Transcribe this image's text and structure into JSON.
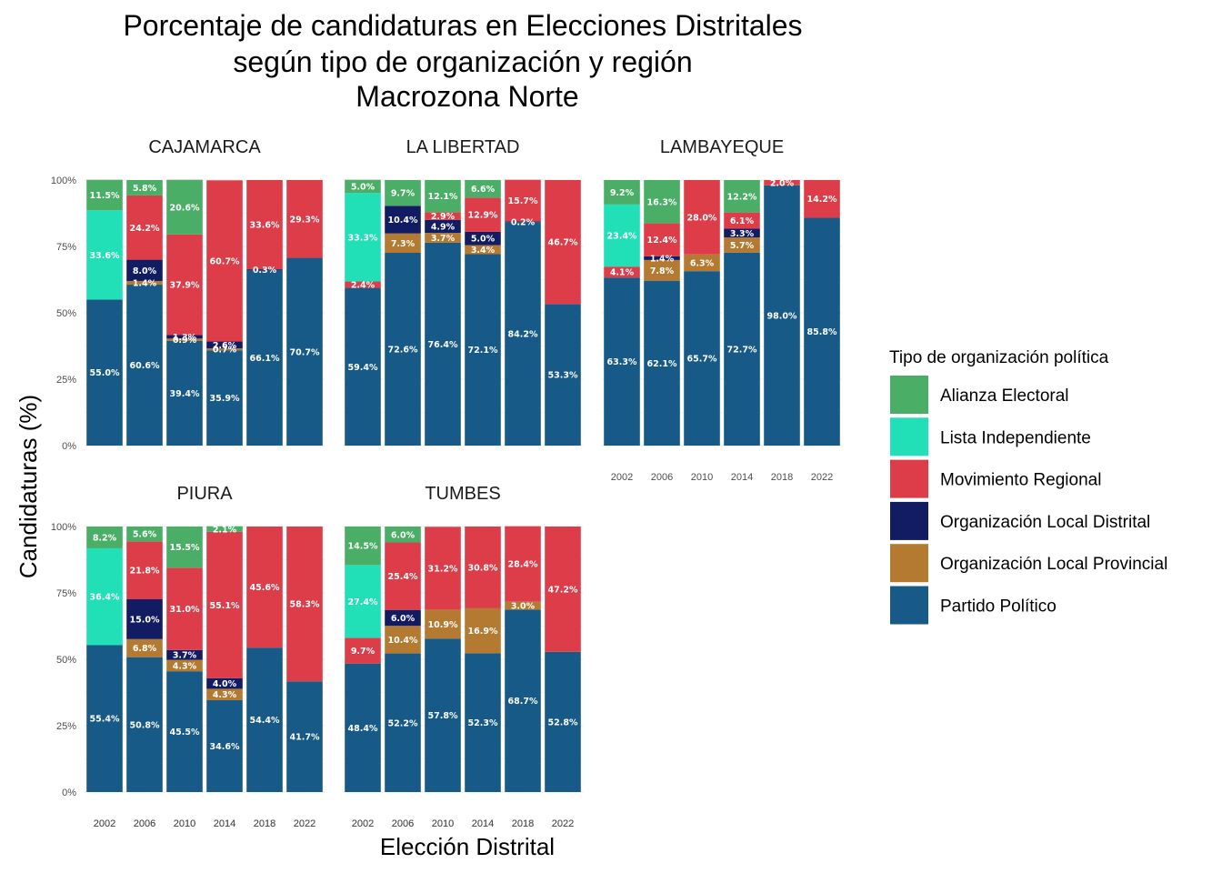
{
  "chart_data": {
    "type": "bar",
    "stacked": true,
    "faceted": true,
    "title": [
      "Porcentaje de candidaturas en Elecciones Distritales",
      "según tipo de organización y región",
      "Macrozona Norte"
    ],
    "xlabel": "Elección Distrital",
    "ylabel": "Candidaturas (%)",
    "ylim": [
      0,
      100
    ],
    "ytick_labels": [
      "0%",
      "25%",
      "50%",
      "75%",
      "100%"
    ],
    "categories": [
      "2002",
      "2006",
      "2010",
      "2014",
      "2018",
      "2022"
    ],
    "grid": true,
    "legend": {
      "title": "Tipo de organización política",
      "position": "right",
      "entries": [
        "Alianza Electoral",
        "Lista Independiente",
        "Movimiento Regional",
        "Organización Local Distrital",
        "Organización Local Provincial",
        "Partido Político"
      ]
    },
    "colors": {
      "Alianza Electoral": "#4BAE66",
      "Lista Independiente": "#21DFB7",
      "Movimiento Regional": "#DD3D49",
      "Organización Local Distrital": "#121C63",
      "Organización Local Provincial": "#B47A31",
      "Partido Político": "#175987"
    },
    "stack_order": [
      "Partido Político",
      "Organización Local Provincial",
      "Organización Local Distrital",
      "Movimiento Regional",
      "Lista Independiente",
      "Alianza Electoral"
    ],
    "facets": [
      {
        "name": "CAJAMARCA",
        "series": [
          {
            "name": "Partido Político",
            "values": [
              55.0,
              60.6,
              39.4,
              35.9,
              66.1,
              70.7
            ]
          },
          {
            "name": "Organización Local Provincial",
            "values": [
              0,
              1.4,
              0.9,
              0.7,
              0,
              0
            ]
          },
          {
            "name": "Organización Local Distrital",
            "values": [
              0,
              8.0,
              1.3,
              2.6,
              0.3,
              0
            ]
          },
          {
            "name": "Movimiento Regional",
            "values": [
              0,
              24.2,
              37.9,
              60.7,
              33.6,
              29.3
            ]
          },
          {
            "name": "Lista Independiente",
            "values": [
              33.6,
              0,
              0,
              0,
              0,
              0
            ]
          },
          {
            "name": "Alianza Electoral",
            "values": [
              11.5,
              5.8,
              20.6,
              0,
              0,
              0
            ]
          }
        ]
      },
      {
        "name": "LA LIBERTAD",
        "series": [
          {
            "name": "Partido Político",
            "values": [
              59.4,
              72.6,
              76.4,
              72.1,
              84.2,
              53.3
            ]
          },
          {
            "name": "Organización Local Provincial",
            "values": [
              0,
              7.3,
              3.7,
              3.4,
              0,
              0
            ]
          },
          {
            "name": "Organización Local Distrital",
            "values": [
              0,
              10.4,
              4.9,
              5.0,
              0.2,
              0
            ]
          },
          {
            "name": "Movimiento Regional",
            "values": [
              2.4,
              0,
              2.9,
              12.9,
              15.7,
              46.7
            ]
          },
          {
            "name": "Lista Independiente",
            "values": [
              33.3,
              0,
              0,
              0,
              0,
              0
            ]
          },
          {
            "name": "Alianza Electoral",
            "values": [
              5.0,
              9.7,
              12.1,
              6.6,
              0,
              0
            ]
          }
        ]
      },
      {
        "name": "LAMBAYEQUE",
        "series": [
          {
            "name": "Partido Político",
            "values": [
              63.3,
              62.1,
              65.7,
              72.7,
              98.0,
              85.8
            ]
          },
          {
            "name": "Organización Local Provincial",
            "values": [
              0,
              7.8,
              6.3,
              5.7,
              0,
              0
            ]
          },
          {
            "name": "Organización Local Distrital",
            "values": [
              0,
              1.4,
              0,
              3.3,
              0,
              0
            ]
          },
          {
            "name": "Movimiento Regional",
            "values": [
              4.1,
              12.4,
              28.0,
              6.1,
              2.0,
              14.2
            ]
          },
          {
            "name": "Lista Independiente",
            "values": [
              23.4,
              0,
              0,
              0,
              0,
              0
            ]
          },
          {
            "name": "Alianza Electoral",
            "values": [
              9.2,
              16.3,
              0,
              12.2,
              0,
              0
            ]
          }
        ]
      },
      {
        "name": "PIURA",
        "series": [
          {
            "name": "Partido Político",
            "values": [
              55.4,
              50.8,
              45.5,
              34.6,
              54.4,
              41.7
            ]
          },
          {
            "name": "Organización Local Provincial",
            "values": [
              0,
              6.8,
              4.3,
              4.3,
              0,
              0
            ]
          },
          {
            "name": "Organización Local Distrital",
            "values": [
              0,
              15.0,
              3.7,
              4.0,
              0,
              0
            ]
          },
          {
            "name": "Movimiento Regional",
            "values": [
              0,
              21.8,
              31.0,
              55.1,
              45.6,
              58.3
            ]
          },
          {
            "name": "Lista Independiente",
            "values": [
              36.4,
              0,
              0,
              0,
              0,
              0
            ]
          },
          {
            "name": "Alianza Electoral",
            "values": [
              8.2,
              5.6,
              15.5,
              2.1,
              0,
              0
            ]
          }
        ]
      },
      {
        "name": "TUMBES",
        "series": [
          {
            "name": "Partido Político",
            "values": [
              48.4,
              52.2,
              57.8,
              52.3,
              68.7,
              52.8
            ]
          },
          {
            "name": "Organización Local Provincial",
            "values": [
              0,
              10.4,
              10.9,
              16.9,
              3.0,
              0
            ]
          },
          {
            "name": "Organización Local Distrital",
            "values": [
              0,
              6.0,
              0,
              0,
              0,
              0
            ]
          },
          {
            "name": "Movimiento Regional",
            "values": [
              9.7,
              25.4,
              31.2,
              30.8,
              28.4,
              47.2
            ]
          },
          {
            "name": "Lista Independiente",
            "values": [
              27.4,
              0,
              0,
              0,
              0,
              0
            ]
          },
          {
            "name": "Alianza Electoral",
            "values": [
              14.5,
              6.0,
              0,
              0,
              0,
              0
            ]
          }
        ]
      }
    ]
  }
}
